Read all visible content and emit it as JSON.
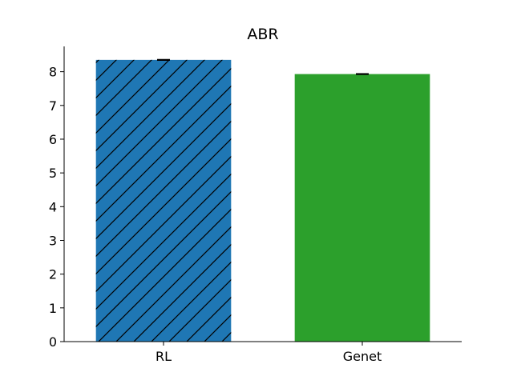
{
  "chart_data": {
    "type": "bar",
    "title": "ABR",
    "xlabel": "",
    "ylabel": "",
    "categories": [
      "RL",
      "Genet"
    ],
    "values": [
      8.35,
      7.93
    ],
    "errors": [
      0.01,
      0.01
    ],
    "colors": [
      "#1f77b4",
      "#2ca02c"
    ],
    "hatch": [
      "diagonal",
      "none"
    ],
    "ylim": [
      0,
      8.75
    ],
    "yticks": [
      0,
      1,
      2,
      3,
      4,
      5,
      6,
      7,
      8
    ],
    "grid": false,
    "legend": "none"
  }
}
